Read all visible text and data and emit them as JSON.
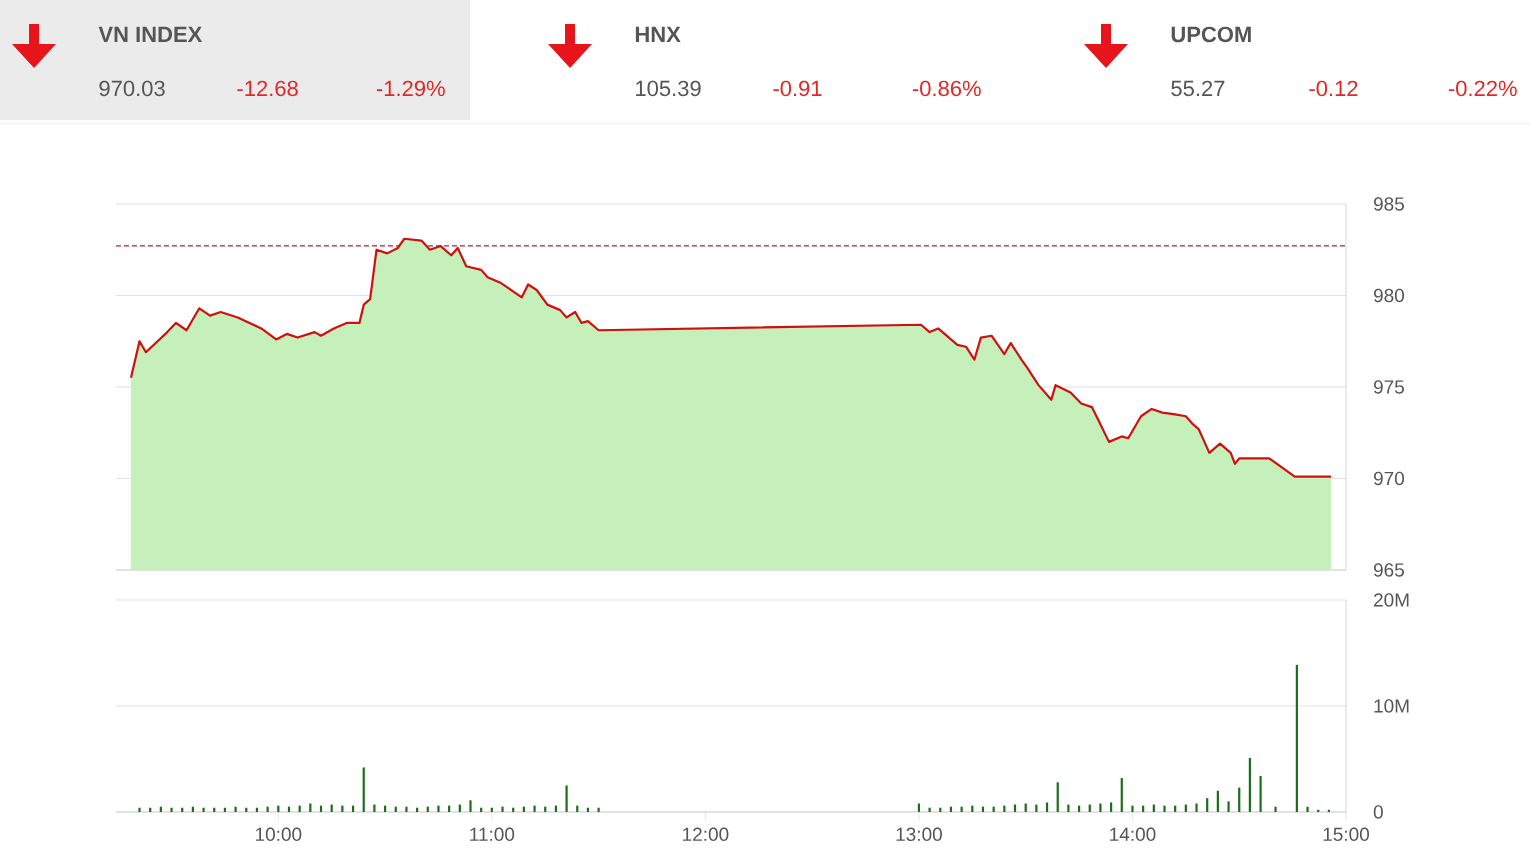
{
  "chart_data": [
    {
      "type": "other",
      "annotations": [
        "VN INDEX",
        "970.03",
        "-12.68",
        "-1.29%",
        "HNX",
        "105.39",
        "-0.91",
        "-0.86%",
        "UPCOM",
        "55.27",
        "-0.12",
        "-0.22%"
      ]
    },
    {
      "type": "area",
      "xlim": [
        9.24,
        15
      ],
      "ylim": [
        965,
        985
      ],
      "yticks": [
        965,
        970,
        975,
        980,
        985
      ],
      "grid": "y",
      "tick_labels": "y",
      "ref_lines": [
        {
          "axis": "y",
          "value": 982.71,
          "color": "#b22222",
          "line_style": "dashed"
        }
      ],
      "series": [
        {
          "color": "#c6f0ba",
          "x": [
            9.31,
            9.35,
            9.38,
            9.48,
            9.52,
            9.57,
            9.63,
            9.68,
            9.73,
            9.81,
            9.92,
            9.99,
            10.04,
            10.09,
            10.17,
            10.2,
            10.26,
            10.32,
            10.38,
            10.4,
            10.43,
            10.46,
            10.51,
            10.56,
            10.59,
            10.67,
            10.71,
            10.76,
            10.81,
            10.84,
            10.88,
            10.95,
            10.98,
            11.04,
            11.14,
            11.17,
            11.21,
            11.26,
            11.32,
            11.35,
            11.39,
            11.42,
            11.45,
            11.5,
            13.01,
            13.05,
            13.09,
            13.18,
            13.22,
            13.26,
            13.29,
            13.34,
            13.4,
            13.43,
            13.48,
            13.51,
            13.56,
            13.62,
            13.64,
            13.71,
            13.76,
            13.81,
            13.84,
            13.89,
            13.95,
            13.98,
            14.04,
            14.09,
            14.14,
            14.2,
            14.25,
            14.28,
            14.31,
            14.36,
            14.41,
            14.46,
            14.48,
            14.5,
            14.64,
            14.76,
            14.93
          ],
          "values": [
            975.5,
            977.5,
            976.9,
            978.0,
            978.5,
            978.1,
            979.3,
            978.9,
            979.1,
            978.8,
            978.2,
            977.6,
            977.9,
            977.7,
            978.0,
            977.8,
            978.2,
            978.5,
            978.5,
            979.5,
            979.8,
            982.5,
            982.3,
            982.6,
            983.1,
            983.0,
            982.5,
            982.7,
            982.2,
            982.6,
            981.6,
            981.4,
            981.0,
            980.7,
            979.9,
            980.6,
            980.3,
            979.5,
            979.2,
            978.8,
            979.1,
            978.5,
            978.6,
            978.1,
            978.4,
            978.0,
            978.2,
            977.3,
            977.2,
            976.5,
            977.7,
            977.8,
            976.8,
            977.4,
            976.5,
            976.0,
            975.1,
            974.3,
            975.1,
            974.7,
            974.1,
            973.9,
            973.2,
            972.0,
            972.3,
            972.2,
            973.4,
            973.8,
            973.6,
            973.5,
            973.4,
            973.0,
            972.7,
            971.4,
            971.9,
            971.4,
            970.8,
            971.1,
            971.1,
            970.1,
            970.1
          ]
        },
        {
          "type": "line",
          "color": "#d01010",
          "x": [
            9.31,
            9.35,
            9.38,
            9.48,
            9.52,
            9.57,
            9.63,
            9.68,
            9.73,
            9.81,
            9.92,
            9.99,
            10.04,
            10.09,
            10.17,
            10.2,
            10.26,
            10.32,
            10.38,
            10.4,
            10.43,
            10.46,
            10.51,
            10.56,
            10.59,
            10.67,
            10.71,
            10.76,
            10.81,
            10.84,
            10.88,
            10.95,
            10.98,
            11.04,
            11.14,
            11.17,
            11.21,
            11.26,
            11.32,
            11.35,
            11.39,
            11.42,
            11.45,
            11.5,
            13.01,
            13.05,
            13.09,
            13.18,
            13.22,
            13.26,
            13.29,
            13.34,
            13.4,
            13.43,
            13.48,
            13.51,
            13.56,
            13.62,
            13.64,
            13.71,
            13.76,
            13.81,
            13.84,
            13.89,
            13.95,
            13.98,
            14.04,
            14.09,
            14.14,
            14.2,
            14.25,
            14.28,
            14.31,
            14.36,
            14.41,
            14.46,
            14.48,
            14.5,
            14.64,
            14.76,
            14.93
          ],
          "values": [
            975.5,
            977.5,
            976.9,
            978.0,
            978.5,
            978.1,
            979.3,
            978.9,
            979.1,
            978.8,
            978.2,
            977.6,
            977.9,
            977.7,
            978.0,
            977.8,
            978.2,
            978.5,
            978.5,
            979.5,
            979.8,
            982.5,
            982.3,
            982.6,
            983.1,
            983.0,
            982.5,
            982.7,
            982.2,
            982.6,
            981.6,
            981.4,
            981.0,
            980.7,
            979.9,
            980.6,
            980.3,
            979.5,
            979.2,
            978.8,
            979.1,
            978.5,
            978.6,
            978.1,
            978.4,
            978.0,
            978.2,
            977.3,
            977.2,
            976.5,
            977.7,
            977.8,
            976.8,
            977.4,
            976.5,
            976.0,
            975.1,
            974.3,
            975.1,
            974.7,
            974.1,
            973.9,
            973.2,
            972.0,
            972.3,
            972.2,
            973.4,
            973.8,
            973.6,
            973.5,
            973.4,
            973.0,
            972.7,
            971.4,
            971.9,
            971.4,
            970.8,
            971.1,
            971.1,
            970.1,
            970.1
          ]
        }
      ]
    },
    {
      "type": "bar",
      "xlim": [
        9.24,
        15
      ],
      "ylim": [
        0,
        20
      ],
      "yticks": [
        0,
        {
          "value": 10,
          "label": "10M"
        },
        {
          "value": 20,
          "label": "20M"
        }
      ],
      "xticks": [
        {
          "value": 10,
          "label": "10:00"
        },
        {
          "value": 11,
          "label": "11:00"
        },
        {
          "value": 12,
          "label": "12:00"
        },
        {
          "value": 13,
          "label": "13:00"
        },
        {
          "value": 14,
          "label": "14:00"
        },
        {
          "value": 15,
          "label": "15:00"
        }
      ],
      "grid": "y",
      "series": [
        {
          "color": "#1b6e1b",
          "x": [
            9.35,
            9.4,
            9.45,
            9.5,
            9.55,
            9.6,
            9.65,
            9.7,
            9.75,
            9.8,
            9.85,
            9.9,
            9.95,
            10,
            10.05,
            10.1,
            10.15,
            10.2,
            10.25,
            10.3,
            10.35,
            10.4,
            10.45,
            10.5,
            10.55,
            10.6,
            10.65,
            10.7,
            10.75,
            10.8,
            10.85,
            10.9,
            10.95,
            11,
            11.05,
            11.1,
            11.15,
            11.2,
            11.25,
            11.3,
            11.35,
            11.4,
            11.45,
            11.5,
            13,
            13.05,
            13.1,
            13.15,
            13.2,
            13.25,
            13.3,
            13.35,
            13.4,
            13.45,
            13.5,
            13.55,
            13.6,
            13.65,
            13.7,
            13.75,
            13.8,
            13.85,
            13.9,
            13.95,
            14,
            14.05,
            14.1,
            14.15,
            14.2,
            14.25,
            14.3,
            14.35,
            14.4,
            14.45,
            14.5,
            14.55,
            14.6,
            14.67,
            14.77,
            14.82,
            14.87,
            14.92
          ],
          "values": [
            0.4,
            0.4,
            0.5,
            0.4,
            0.4,
            0.5,
            0.4,
            0.4,
            0.4,
            0.5,
            0.4,
            0.4,
            0.5,
            0.6,
            0.5,
            0.6,
            0.8,
            0.6,
            0.7,
            0.6,
            0.6,
            4.2,
            0.7,
            0.6,
            0.5,
            0.5,
            0.4,
            0.5,
            0.6,
            0.6,
            0.7,
            1.1,
            0.4,
            0.4,
            0.5,
            0.4,
            0.5,
            0.6,
            0.5,
            0.6,
            2.5,
            0.6,
            0.4,
            0.4,
            0.8,
            0.4,
            0.4,
            0.5,
            0.5,
            0.6,
            0.5,
            0.5,
            0.6,
            0.7,
            0.8,
            0.7,
            0.9,
            2.8,
            0.7,
            0.6,
            0.7,
            0.8,
            0.9,
            3.2,
            0.6,
            0.6,
            0.7,
            0.6,
            0.6,
            0.7,
            0.8,
            1.3,
            2.0,
            1.0,
            2.3,
            5.1,
            3.4,
            0.5,
            13.9,
            0.5,
            0.2,
            0.2
          ]
        }
      ]
    }
  ]
}
